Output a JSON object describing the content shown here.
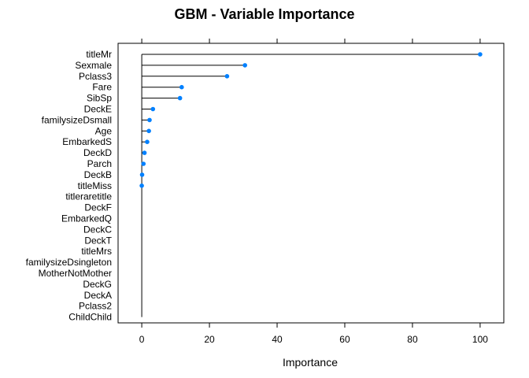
{
  "chart_data": {
    "type": "dot",
    "title": "GBM - Variable Importance",
    "xlabel": "Importance",
    "ylabel": "",
    "xlim": [
      -7,
      107
    ],
    "xticks": [
      "0",
      "20",
      "40",
      "60",
      "80",
      "100"
    ],
    "xtick_values": [
      0,
      20,
      40,
      60,
      80,
      100
    ],
    "grid": false,
    "point_color": "#0080ff",
    "line_color": "#000000",
    "categories": [
      "titleMr",
      "Sexmale",
      "Pclass3",
      "Fare",
      "SibSp",
      "DeckE",
      "familysizeDsmall",
      "Age",
      "EmbarkedS",
      "DeckD",
      "Parch",
      "DeckB",
      "titleMiss",
      "titleraretitle",
      "DeckF",
      "EmbarkedQ",
      "DeckC",
      "DeckT",
      "titleMrs",
      "familysizeDsingleton",
      "MotherNotMother",
      "DeckG",
      "DeckA",
      "Pclass2",
      "ChildChild"
    ],
    "values": [
      100,
      30.5,
      25.2,
      11.8,
      11.3,
      3.3,
      2.3,
      2.1,
      1.6,
      0.8,
      0.5,
      0.1,
      0.0,
      null,
      null,
      null,
      null,
      null,
      null,
      null,
      null,
      null,
      null,
      null,
      null
    ]
  }
}
